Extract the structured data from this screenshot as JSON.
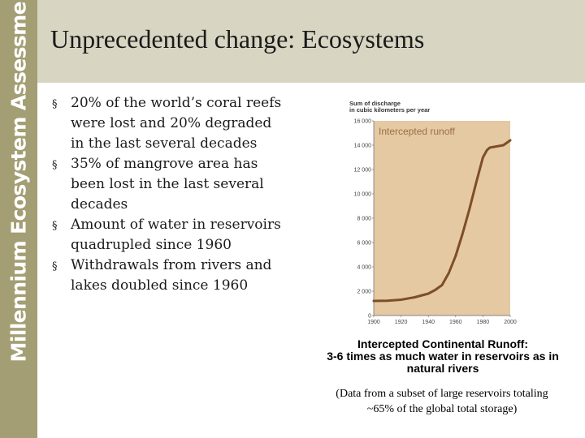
{
  "sidebar": {
    "text": "Millennium Ecosystem Assessment"
  },
  "header": {
    "title": "Unprecedented change: Ecosystems"
  },
  "bullets": [
    "20% of the world’s coral reefs were lost and 20% degraded in the last several decades",
    "35% of mangrove area has been lost in the last several decades",
    "Amount of water in reservoirs quadrupled since 1960",
    "Withdrawals from rivers and lakes doubled since 1960"
  ],
  "bullet_glyph": "§",
  "chart_data": {
    "type": "line",
    "ylabel_lines": [
      "Sum of discharge",
      "in cubic kilometers per year"
    ],
    "series": [
      {
        "name": "Intercepted runoff",
        "x": [
          1900,
          1910,
          1920,
          1930,
          1940,
          1945,
          1950,
          1955,
          1960,
          1965,
          1970,
          1975,
          1980,
          1983,
          1985,
          1990,
          1995,
          2000
        ],
        "y": [
          1200,
          1220,
          1300,
          1500,
          1800,
          2100,
          2500,
          3500,
          4900,
          6700,
          8700,
          10900,
          13000,
          13600,
          13800,
          13900,
          14000,
          14400
        ]
      }
    ],
    "xticks": [
      "1900",
      "1920",
      "1940",
      "1960",
      "1980",
      "2000"
    ],
    "yticks": [
      "0",
      "2 000",
      "4 000",
      "6 000",
      "8 000",
      "10 000",
      "12 000",
      "14 000",
      "16 000"
    ],
    "xlim": [
      1900,
      2000
    ],
    "ylim": [
      0,
      16000
    ],
    "grid": false,
    "colors": {
      "background": "#e4c9a2",
      "line": "#7d4e28",
      "label": "#9a7048"
    }
  },
  "caption": {
    "line1": "Intercepted Continental Runoff:",
    "line2": "3-6 times as much water in reservoirs as in",
    "line3": "natural rivers"
  },
  "note": {
    "line1": "(Data from a subset of large reservoirs totaling",
    "line2": "~65% of the global total storage)"
  }
}
